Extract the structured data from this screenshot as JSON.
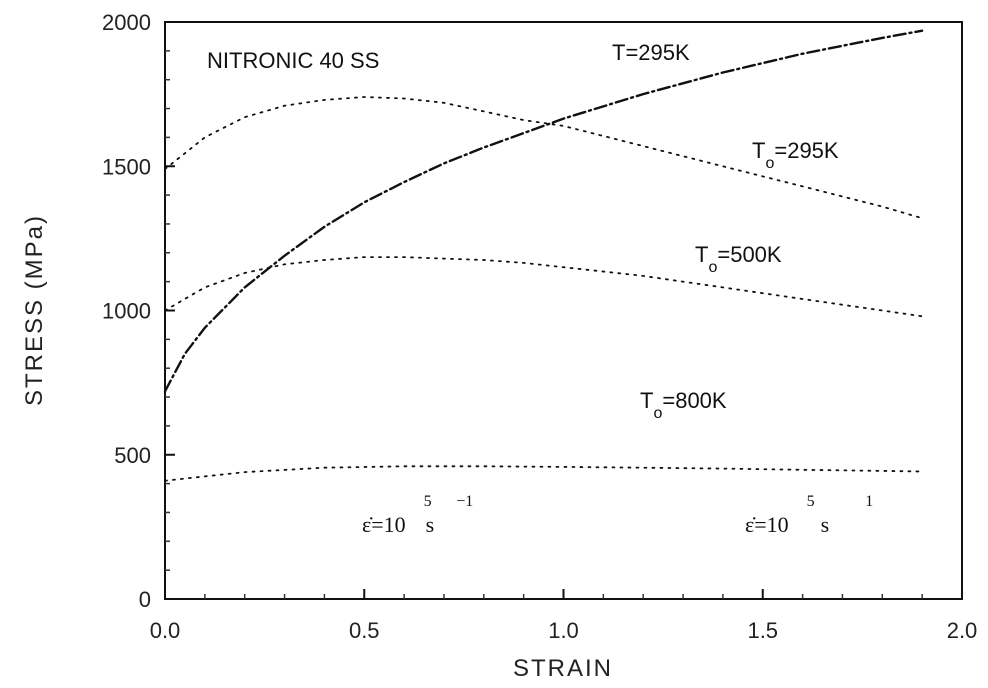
{
  "chart_data": {
    "type": "line",
    "title": "NITRONIC 40 SS",
    "xlabel": "STRAIN",
    "ylabel": "STRESS (MPa)",
    "xlim": [
      0,
      2.0
    ],
    "ylim": [
      0,
      2000
    ],
    "xticks": [
      0.0,
      0.5,
      1.0,
      1.5,
      2.0
    ],
    "xtick_labels": [
      "0.0",
      "0.5",
      "1.0",
      "1.5",
      "2.0"
    ],
    "yticks": [
      0,
      500,
      1000,
      1500,
      2000
    ],
    "ytick_labels": [
      "0",
      "500",
      "1000",
      "1500",
      "2000"
    ],
    "series": [
      {
        "name": "T=295K",
        "style": "dashdot",
        "x": [
          0.0,
          0.05,
          0.1,
          0.2,
          0.3,
          0.4,
          0.5,
          0.6,
          0.7,
          0.8,
          0.9,
          1.0,
          1.2,
          1.4,
          1.6,
          1.8,
          1.9
        ],
        "y": [
          720,
          850,
          940,
          1080,
          1190,
          1290,
          1375,
          1445,
          1510,
          1565,
          1615,
          1665,
          1750,
          1825,
          1890,
          1945,
          1970
        ]
      },
      {
        "name": "To=295K",
        "style": "dotted",
        "x": [
          0.0,
          0.1,
          0.2,
          0.3,
          0.4,
          0.5,
          0.6,
          0.7,
          0.8,
          0.9,
          1.0,
          1.2,
          1.4,
          1.6,
          1.8,
          1.9
        ],
        "y": [
          1490,
          1600,
          1670,
          1710,
          1730,
          1740,
          1735,
          1720,
          1690,
          1660,
          1640,
          1570,
          1500,
          1430,
          1360,
          1320
        ]
      },
      {
        "name": "To=500K",
        "style": "dotted",
        "x": [
          0.0,
          0.1,
          0.2,
          0.3,
          0.4,
          0.5,
          0.6,
          0.7,
          0.8,
          0.9,
          1.0,
          1.2,
          1.4,
          1.6,
          1.8,
          1.9
        ],
        "y": [
          1000,
          1080,
          1130,
          1160,
          1175,
          1185,
          1185,
          1180,
          1175,
          1165,
          1150,
          1120,
          1080,
          1040,
          1000,
          980
        ]
      },
      {
        "name": "To=800K",
        "style": "dotted",
        "x": [
          0.0,
          0.2,
          0.4,
          0.6,
          0.8,
          1.0,
          1.2,
          1.4,
          1.6,
          1.8,
          1.9
        ],
        "y": [
          410,
          440,
          455,
          460,
          460,
          458,
          455,
          452,
          448,
          444,
          442
        ]
      }
    ],
    "annotations": {
      "t295": "T=295K",
      "to295_main": "T",
      "to295_sub": "o",
      "to295_rest": "=295K",
      "to500_main": "T",
      "to500_sub": "o",
      "to500_rest": "=500K",
      "to800_main": "T",
      "to800_sub": "o",
      "to800_rest": "=800K",
      "rate_left_main": "ε̇=10",
      "rate_left_exp": "5",
      "rate_left_unit": "s",
      "rate_left_unit_exp": "−1",
      "rate_right_main": "ε̇=10",
      "rate_right_exp": "5",
      "rate_right_unit": "s",
      "rate_right_unit_exp": "1"
    },
    "grid": false,
    "legend": "none"
  }
}
